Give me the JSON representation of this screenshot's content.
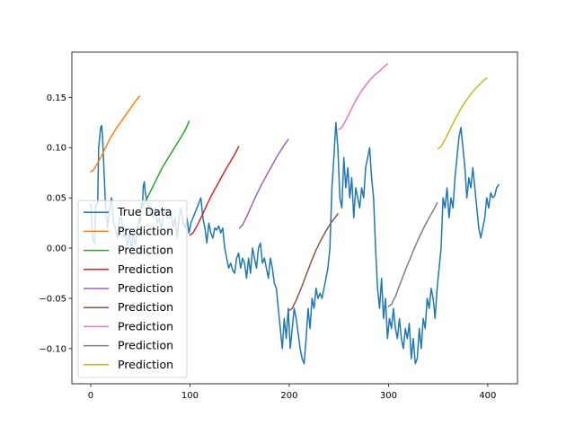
{
  "chart_data": {
    "type": "line",
    "title": "",
    "xlabel": "",
    "ylabel": "",
    "xlim": [
      -19,
      430
    ],
    "ylim": [
      -0.135,
      0.195
    ],
    "xticks": [
      0,
      100,
      200,
      300,
      400
    ],
    "xtick_labels": [
      "0",
      "100",
      "200",
      "300",
      "400"
    ],
    "yticks": [
      -0.1,
      -0.05,
      0.0,
      0.05,
      0.1,
      0.15
    ],
    "ytick_labels": [
      "−0.10",
      "−0.05",
      "0.00",
      "0.05",
      "0.10",
      "0.15"
    ],
    "grid": false,
    "legend": {
      "position": "lower-left"
    },
    "series": [
      {
        "name": "True Data",
        "color": "#1f77b4",
        "points": [
          [
            0,
            0.044
          ],
          [
            2,
            0.01
          ],
          [
            4,
            0.004
          ],
          [
            5,
            0.042
          ],
          [
            7,
            0.045
          ],
          [
            8,
            0.1
          ],
          [
            9,
            0.11
          ],
          [
            10,
            0.12
          ],
          [
            11,
            0.122
          ],
          [
            12,
            0.11
          ],
          [
            13,
            0.085
          ],
          [
            15,
            0.04
          ],
          [
            17,
            0.02
          ],
          [
            19,
            0.04
          ],
          [
            21,
            0.05
          ],
          [
            23,
            0.025
          ],
          [
            25,
            0.02
          ],
          [
            27,
            0.01
          ],
          [
            29,
            0.03
          ],
          [
            31,
            0.03
          ],
          [
            33,
            0.01
          ],
          [
            35,
            0.015
          ],
          [
            37,
            0.002
          ],
          [
            39,
            0.015
          ],
          [
            41,
            0.0
          ],
          [
            43,
            0.012
          ],
          [
            45,
            0.002
          ],
          [
            47,
            0.02
          ],
          [
            49,
            0.03
          ],
          [
            50,
            0.025
          ],
          [
            51,
            0.045
          ],
          [
            52,
            0.04
          ],
          [
            53,
            0.062
          ],
          [
            54,
            0.066
          ],
          [
            55,
            0.055
          ],
          [
            57,
            0.045
          ],
          [
            59,
            0.04
          ],
          [
            61,
            0.035
          ],
          [
            63,
            0.03
          ],
          [
            65,
            0.04
          ],
          [
            67,
            0.025
          ],
          [
            69,
            0.03
          ],
          [
            71,
            0.02
          ],
          [
            73,
            0.03
          ],
          [
            75,
            0.04
          ],
          [
            77,
            0.03
          ],
          [
            79,
            0.03
          ],
          [
            81,
            0.035
          ],
          [
            83,
            0.02
          ],
          [
            85,
            0.03
          ],
          [
            87,
            0.01
          ],
          [
            89,
            0.03
          ],
          [
            91,
            0.04
          ],
          [
            93,
            0.025
          ],
          [
            95,
            0.02
          ],
          [
            97,
            0.03
          ],
          [
            99,
            0.015
          ],
          [
            101,
            0.025
          ],
          [
            103,
            0.03
          ],
          [
            105,
            0.035
          ],
          [
            107,
            0.04
          ],
          [
            109,
            0.045
          ],
          [
            111,
            0.05
          ],
          [
            113,
            0.03
          ],
          [
            115,
            0.02
          ],
          [
            117,
            0.005
          ],
          [
            119,
            0.025
          ],
          [
            121,
            0.015
          ],
          [
            123,
            0.01
          ],
          [
            125,
            0.02
          ],
          [
            127,
            0.018
          ],
          [
            129,
            0.022
          ],
          [
            131,
            0.015
          ],
          [
            133,
            0.02
          ],
          [
            135,
            0.0
          ],
          [
            137,
            -0.01
          ],
          [
            139,
            -0.02
          ],
          [
            141,
            -0.015
          ],
          [
            143,
            -0.022
          ],
          [
            145,
            -0.025
          ],
          [
            147,
            -0.01
          ],
          [
            149,
            -0.005
          ],
          [
            151,
            -0.02
          ],
          [
            153,
            -0.01
          ],
          [
            155,
            -0.015
          ],
          [
            157,
            -0.03
          ],
          [
            159,
            -0.01
          ],
          [
            161,
            -0.025
          ],
          [
            163,
            0.0
          ],
          [
            165,
            -0.01
          ],
          [
            167,
            -0.02
          ],
          [
            169,
            0.0
          ],
          [
            171,
            0.005
          ],
          [
            173,
            -0.015
          ],
          [
            175,
            -0.01
          ],
          [
            177,
            -0.02
          ],
          [
            179,
            -0.03
          ],
          [
            181,
            -0.01
          ],
          [
            183,
            -0.02
          ],
          [
            185,
            -0.035
          ],
          [
            187,
            -0.04
          ],
          [
            189,
            -0.06
          ],
          [
            191,
            -0.08
          ],
          [
            193,
            -0.1
          ],
          [
            195,
            -0.07
          ],
          [
            197,
            -0.09
          ],
          [
            199,
            -0.06
          ],
          [
            201,
            -0.1
          ],
          [
            203,
            -0.08
          ],
          [
            205,
            -0.06
          ],
          [
            207,
            -0.07
          ],
          [
            209,
            -0.085
          ],
          [
            211,
            -0.1
          ],
          [
            213,
            -0.11
          ],
          [
            215,
            -0.115
          ],
          [
            217,
            -0.09
          ],
          [
            219,
            -0.06
          ],
          [
            221,
            -0.08
          ],
          [
            223,
            -0.05
          ],
          [
            225,
            -0.06
          ],
          [
            227,
            -0.04
          ],
          [
            229,
            -0.05
          ],
          [
            231,
            -0.045
          ],
          [
            233,
            -0.05
          ],
          [
            235,
            -0.04
          ],
          [
            237,
            -0.03
          ],
          [
            239,
            -0.02
          ],
          [
            241,
            0.0
          ],
          [
            243,
            0.06
          ],
          [
            245,
            0.09
          ],
          [
            247,
            0.125
          ],
          [
            249,
            0.1
          ],
          [
            251,
            0.05
          ],
          [
            253,
            0.04
          ],
          [
            255,
            0.09
          ],
          [
            257,
            0.06
          ],
          [
            259,
            0.08
          ],
          [
            261,
            0.05
          ],
          [
            263,
            0.07
          ],
          [
            265,
            0.03
          ],
          [
            267,
            0.06
          ],
          [
            269,
            0.05
          ],
          [
            271,
            0.04
          ],
          [
            273,
            0.06
          ],
          [
            275,
            0.05
          ],
          [
            277,
            0.08
          ],
          [
            279,
            0.09
          ],
          [
            281,
            0.1
          ],
          [
            283,
            0.07
          ],
          [
            285,
            0.05
          ],
          [
            287,
            0.0
          ],
          [
            289,
            -0.04
          ],
          [
            291,
            -0.06
          ],
          [
            293,
            -0.03
          ],
          [
            295,
            -0.07
          ],
          [
            297,
            -0.05
          ],
          [
            299,
            -0.09
          ],
          [
            301,
            -0.07
          ],
          [
            303,
            -0.08
          ],
          [
            305,
            -0.06
          ],
          [
            307,
            -0.08
          ],
          [
            309,
            -0.09
          ],
          [
            311,
            -0.07
          ],
          [
            313,
            -0.09
          ],
          [
            315,
            -0.1
          ],
          [
            317,
            -0.08
          ],
          [
            319,
            -0.09
          ],
          [
            321,
            -0.075
          ],
          [
            323,
            -0.11
          ],
          [
            325,
            -0.09
          ],
          [
            327,
            -0.115
          ],
          [
            329,
            -0.11
          ],
          [
            331,
            -0.08
          ],
          [
            333,
            -0.1
          ],
          [
            335,
            -0.07
          ],
          [
            337,
            -0.08
          ],
          [
            339,
            -0.05
          ],
          [
            341,
            -0.06
          ],
          [
            343,
            -0.04
          ],
          [
            345,
            -0.05
          ],
          [
            347,
            -0.07
          ],
          [
            349,
            -0.04
          ],
          [
            351,
            -0.02
          ],
          [
            353,
            0.0
          ],
          [
            355,
            0.05
          ],
          [
            357,
            0.04
          ],
          [
            359,
            0.06
          ],
          [
            361,
            0.03
          ],
          [
            363,
            0.05
          ],
          [
            365,
            0.04
          ],
          [
            367,
            0.07
          ],
          [
            369,
            0.09
          ],
          [
            371,
            0.11
          ],
          [
            373,
            0.12
          ],
          [
            375,
            0.1
          ],
          [
            377,
            0.08
          ],
          [
            379,
            0.05
          ],
          [
            381,
            0.07
          ],
          [
            383,
            0.06
          ],
          [
            385,
            0.08
          ],
          [
            387,
            0.06
          ],
          [
            389,
            0.04
          ],
          [
            391,
            0.02
          ],
          [
            393,
            0.01
          ],
          [
            395,
            0.02
          ],
          [
            397,
            0.03
          ],
          [
            399,
            0.05
          ],
          [
            401,
            0.04
          ],
          [
            403,
            0.055
          ],
          [
            405,
            0.05
          ],
          [
            407,
            0.052
          ],
          [
            409,
            0.06
          ],
          [
            411,
            0.063
          ]
        ]
      },
      {
        "name": "Prediction",
        "color": "#ff7f0e",
        "points": [
          [
            0,
            0.076
          ],
          [
            3,
            0.078
          ],
          [
            6,
            0.083
          ],
          [
            10,
            0.09
          ],
          [
            15,
            0.1
          ],
          [
            20,
            0.11
          ],
          [
            25,
            0.118
          ],
          [
            30,
            0.125
          ],
          [
            35,
            0.132
          ],
          [
            40,
            0.139
          ],
          [
            45,
            0.146
          ],
          [
            49,
            0.151
          ]
        ]
      },
      {
        "name": "Prediction",
        "color": "#2ca02c",
        "points": [
          [
            50,
            0.04
          ],
          [
            53,
            0.043
          ],
          [
            57,
            0.05
          ],
          [
            62,
            0.06
          ],
          [
            67,
            0.07
          ],
          [
            72,
            0.08
          ],
          [
            77,
            0.088
          ],
          [
            82,
            0.096
          ],
          [
            87,
            0.104
          ],
          [
            92,
            0.112
          ],
          [
            96,
            0.119
          ],
          [
            99,
            0.126
          ]
        ]
      },
      {
        "name": "Prediction",
        "color": "#d62728",
        "points": [
          [
            100,
            0.013
          ],
          [
            103,
            0.015
          ],
          [
            107,
            0.022
          ],
          [
            112,
            0.032
          ],
          [
            117,
            0.043
          ],
          [
            122,
            0.053
          ],
          [
            127,
            0.062
          ],
          [
            132,
            0.071
          ],
          [
            137,
            0.08
          ],
          [
            142,
            0.088
          ],
          [
            146,
            0.095
          ],
          [
            149,
            0.101
          ]
        ]
      },
      {
        "name": "Prediction",
        "color": "#9467bd",
        "points": [
          [
            150,
            0.02
          ],
          [
            153,
            0.023
          ],
          [
            157,
            0.031
          ],
          [
            162,
            0.042
          ],
          [
            167,
            0.053
          ],
          [
            172,
            0.063
          ],
          [
            177,
            0.072
          ],
          [
            182,
            0.081
          ],
          [
            187,
            0.09
          ],
          [
            192,
            0.098
          ],
          [
            196,
            0.104
          ],
          [
            199,
            0.108
          ]
        ]
      },
      {
        "name": "Prediction",
        "color": "#8c564b",
        "points": [
          [
            200,
            -0.062
          ],
          [
            203,
            -0.06
          ],
          [
            207,
            -0.052
          ],
          [
            212,
            -0.04
          ],
          [
            217,
            -0.027
          ],
          [
            222,
            -0.014
          ],
          [
            227,
            -0.002
          ],
          [
            232,
            0.008
          ],
          [
            237,
            0.017
          ],
          [
            242,
            0.025
          ],
          [
            246,
            0.03
          ],
          [
            249,
            0.034
          ]
        ]
      },
      {
        "name": "Prediction",
        "color": "#e377c2",
        "points": [
          [
            250,
            0.118
          ],
          [
            253,
            0.12
          ],
          [
            257,
            0.127
          ],
          [
            262,
            0.137
          ],
          [
            267,
            0.147
          ],
          [
            272,
            0.155
          ],
          [
            277,
            0.162
          ],
          [
            282,
            0.168
          ],
          [
            287,
            0.173
          ],
          [
            292,
            0.177
          ],
          [
            296,
            0.181
          ],
          [
            299,
            0.183
          ]
        ]
      },
      {
        "name": "Prediction",
        "color": "#7f7f7f",
        "points": [
          [
            300,
            -0.058
          ],
          [
            303,
            -0.056
          ],
          [
            307,
            -0.048
          ],
          [
            312,
            -0.035
          ],
          [
            317,
            -0.022
          ],
          [
            322,
            -0.01
          ],
          [
            327,
            0.002
          ],
          [
            332,
            0.013
          ],
          [
            337,
            0.023
          ],
          [
            342,
            0.032
          ],
          [
            346,
            0.039
          ],
          [
            349,
            0.045
          ]
        ]
      },
      {
        "name": "Prediction",
        "color": "#bcbd22",
        "points": [
          [
            350,
            0.099
          ],
          [
            353,
            0.101
          ],
          [
            357,
            0.108
          ],
          [
            362,
            0.118
          ],
          [
            367,
            0.128
          ],
          [
            372,
            0.137
          ],
          [
            377,
            0.145
          ],
          [
            382,
            0.152
          ],
          [
            387,
            0.158
          ],
          [
            392,
            0.163
          ],
          [
            396,
            0.167
          ],
          [
            399,
            0.169
          ]
        ]
      }
    ]
  }
}
